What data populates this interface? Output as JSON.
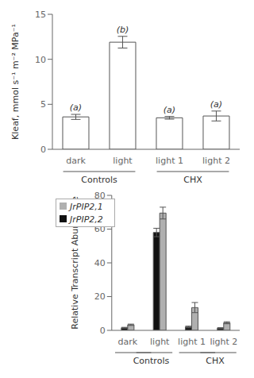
{
  "chart_data": [
    {
      "type": "bar",
      "categories": [
        "dark",
        "light",
        "light 1",
        "light 2"
      ],
      "values": [
        3.6,
        11.9,
        3.5,
        3.7
      ],
      "errors": [
        0.28,
        0.65,
        0.15,
        0.55
      ],
      "annotations": [
        "(a)",
        "(b)",
        "(a)",
        "(a)"
      ],
      "color": "#ffffff",
      "ylabel": "Kleaf, mmol s⁻¹ m⁻² MPa⁻¹",
      "ylim": [
        0,
        15
      ],
      "yticks": [
        0,
        5,
        10,
        15
      ],
      "grid": false,
      "group_labels": [
        {
          "text": "Controls",
          "categories": [
            "dark",
            "light"
          ]
        },
        {
          "text": "CHX",
          "categories": [
            "light 1",
            "light 2"
          ]
        }
      ]
    },
    {
      "type": "bar",
      "categories": [
        "dark",
        "light",
        "light 1",
        "light 2"
      ],
      "series": [
        {
          "name": "JrPIP2,2",
          "color": "#111111",
          "values": [
            1.5,
            58.0,
            2.0,
            1.3
          ],
          "errors": [
            0.3,
            2.5,
            0.5,
            0.3
          ]
        },
        {
          "name": "JrPIP2,1",
          "color": "#b0b0b0",
          "values": [
            3.3,
            69.5,
            13.5,
            4.5
          ],
          "errors": [
            0.4,
            3.5,
            3.0,
            0.6
          ]
        }
      ],
      "ylabel": "Relative Transcript Abundance",
      "ylim": [
        0,
        80
      ],
      "yticks": [
        0,
        20,
        40,
        60,
        80
      ],
      "legend": "upper left",
      "grid": false,
      "group_labels": [
        {
          "text": "Controls",
          "categories": [
            "dark",
            "light"
          ]
        },
        {
          "text": "CHX",
          "categories": [
            "light 1",
            "light 2"
          ]
        }
      ]
    }
  ]
}
